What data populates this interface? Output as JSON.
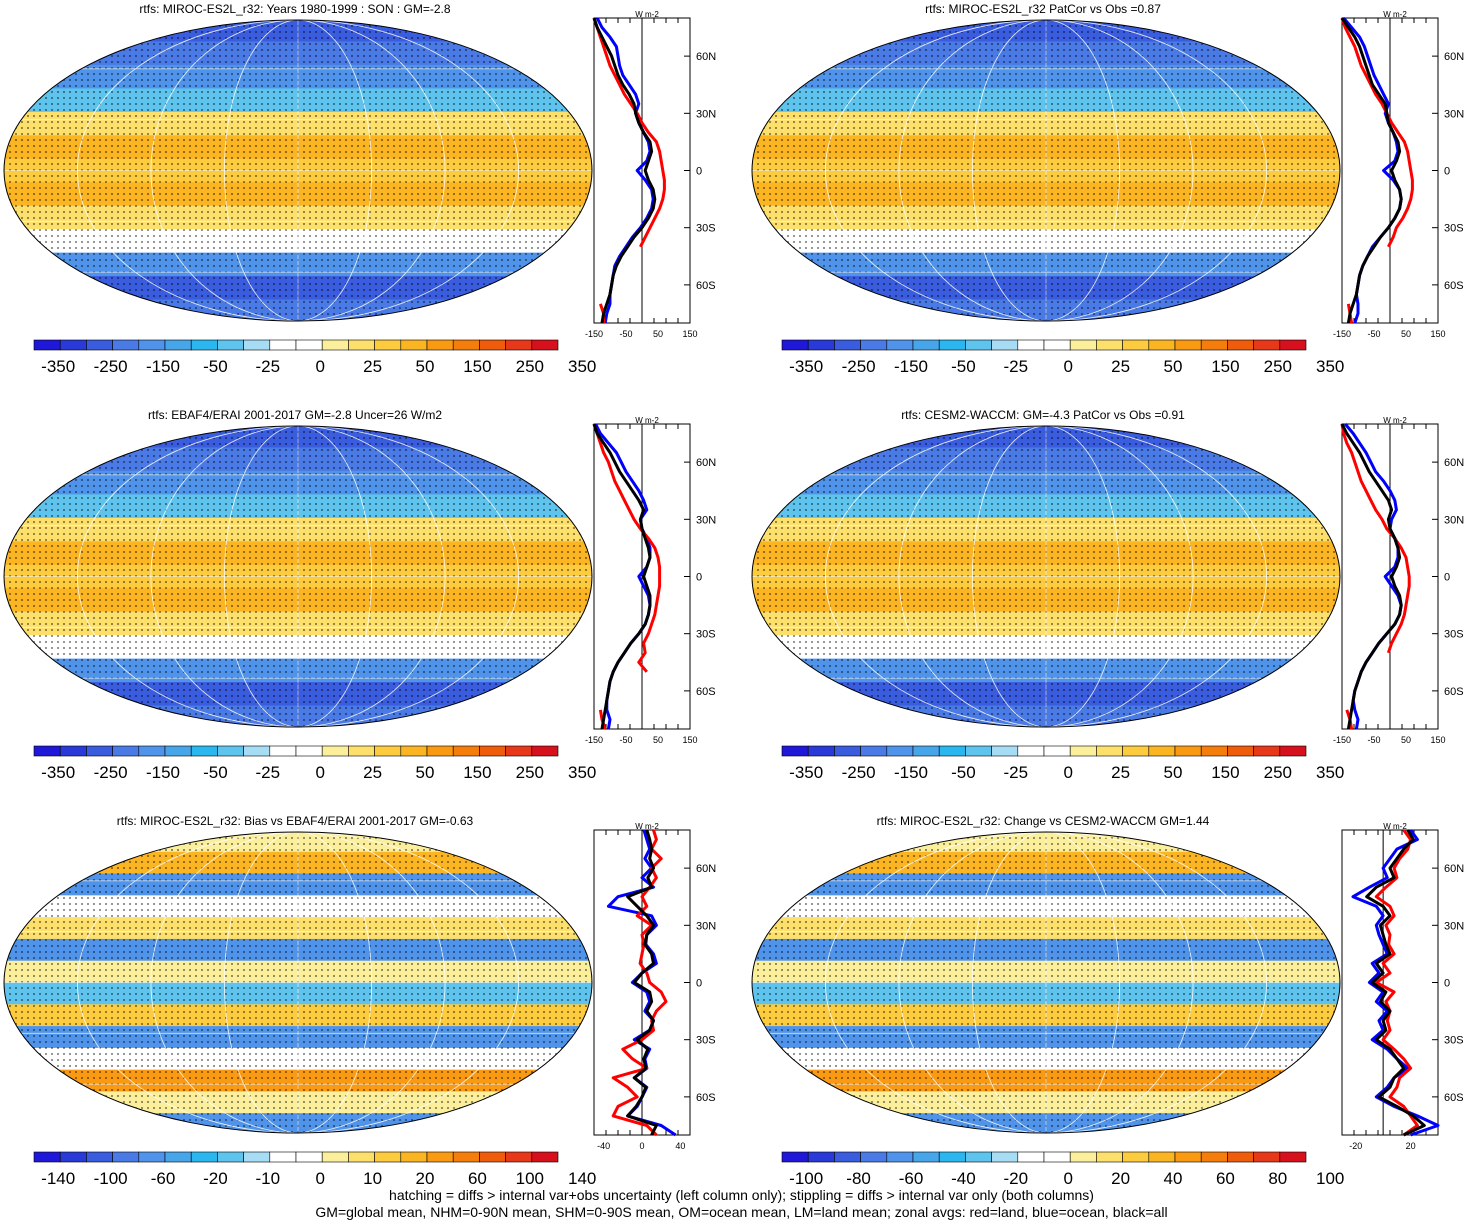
{
  "footnote": {
    "line1": "hatching = diffs > internal var+obs uncertainty (left column only); stippling = diffs > internal var only (both columns)",
    "line2": "GM=global mean, NHM=0-90N mean, SHM=0-90S mean, OM=ocean mean, LM=land mean; zonal avgs: red=land, blue=ocean, black=all"
  },
  "palette": {
    "colors": [
      "#2018d8",
      "#2a3ad8",
      "#3a5cde",
      "#4a7ae6",
      "#4f94ea",
      "#47a6ea",
      "#2ab6ee",
      "#5ec4ee",
      "#a7dcf5",
      "#ffffff",
      "#ffffff",
      "#fbef9c",
      "#fde06c",
      "#fdcb3e",
      "#fbb522",
      "#f99a12",
      "#f57d0c",
      "#ef5c0c",
      "#e7381a",
      "#d6101c"
    ],
    "land_line": "#000000",
    "red": "#ff0000",
    "blue": "#0000ff",
    "black": "#000000"
  },
  "zonal_lat_ticks": [
    "60N",
    "30N",
    "0",
    "30S",
    "60S"
  ],
  "zonal_unit": "W m-2",
  "chart_data": [
    {
      "type": "heatmap",
      "title": "rtfs: MIROC-ES2L_r32: Years 1980-1999 : SON : GM=-2.8",
      "colorbar_labels": [
        "-350",
        "-250",
        "-150",
        "-50",
        "-25",
        "0",
        "25",
        "50",
        "150",
        "250",
        "350"
      ],
      "zonal": {
        "xticks": [
          "-150",
          "-50",
          "50",
          "150"
        ],
        "xlim": [
          -150,
          150
        ],
        "lat": [
          80,
          75,
          70,
          65,
          60,
          55,
          50,
          45,
          40,
          35,
          30,
          25,
          20,
          15,
          10,
          5,
          0,
          -5,
          -10,
          -15,
          -20,
          -25,
          -30,
          -35,
          -40,
          -45,
          -50,
          -55,
          -60,
          -65,
          -70,
          -75,
          -80
        ],
        "all": [
          -150,
          -140,
          -125,
          -110,
          -95,
          -85,
          -75,
          -60,
          -40,
          -25,
          -20,
          -10,
          5,
          25,
          30,
          20,
          10,
          20,
          35,
          40,
          35,
          20,
          0,
          -25,
          -45,
          -65,
          -80,
          -90,
          -95,
          -100,
          -110,
          -120,
          -125
        ],
        "land": [
          -150,
          -140,
          -130,
          -120,
          -110,
          -100,
          -85,
          -70,
          -55,
          -35,
          -15,
          0,
          20,
          45,
          55,
          60,
          65,
          70,
          70,
          65,
          55,
          40,
          25,
          10,
          -5,
          null,
          null,
          null,
          null,
          null,
          -130,
          -120,
          -120
        ],
        "ocean": [
          -140,
          -125,
          -100,
          -80,
          -75,
          -70,
          -60,
          -40,
          -20,
          -10,
          -20,
          -10,
          5,
          20,
          25,
          15,
          -15,
          10,
          30,
          35,
          30,
          15,
          -5,
          -30,
          -50,
          -70,
          -85,
          -90,
          -95,
          -100,
          -100,
          -110,
          -115
        ]
      }
    },
    {
      "type": "heatmap",
      "title": "rtfs: MIROC-ES2L_r32 PatCor vs Obs =0.87",
      "colorbar_labels": [
        "-350",
        "-250",
        "-150",
        "-50",
        "-25",
        "0",
        "25",
        "50",
        "150",
        "250",
        "350"
      ],
      "zonal": {
        "xticks": [
          "-150",
          "-50",
          "50",
          "150"
        ],
        "xlim": [
          -150,
          150
        ],
        "lat": [
          80,
          75,
          70,
          65,
          60,
          55,
          50,
          45,
          40,
          35,
          30,
          25,
          20,
          15,
          10,
          5,
          0,
          -5,
          -10,
          -15,
          -20,
          -25,
          -30,
          -35,
          -40,
          -45,
          -50,
          -55,
          -60,
          -65,
          -70,
          -75,
          -80
        ],
        "all": [
          -150,
          -130,
          -110,
          -95,
          -85,
          -75,
          -65,
          -55,
          -35,
          -15,
          -10,
          -5,
          10,
          25,
          30,
          20,
          5,
          15,
          30,
          35,
          30,
          15,
          -5,
          -30,
          -50,
          -70,
          -85,
          -95,
          -100,
          -105,
          -115,
          -125,
          -130
        ],
        "land": [
          -150,
          -140,
          -125,
          -110,
          -100,
          -90,
          -75,
          -60,
          -45,
          -25,
          -10,
          5,
          25,
          45,
          55,
          60,
          65,
          70,
          70,
          65,
          55,
          40,
          20,
          10,
          -5,
          null,
          null,
          null,
          null,
          null,
          -130,
          -125,
          -120
        ],
        "ocean": [
          -145,
          -120,
          -95,
          -80,
          -70,
          -60,
          -50,
          -35,
          -20,
          -5,
          -15,
          -5,
          10,
          20,
          25,
          15,
          -20,
          10,
          30,
          35,
          30,
          15,
          -5,
          -30,
          -55,
          -70,
          -85,
          -95,
          -100,
          -105,
          -100,
          -100,
          -110
        ]
      }
    },
    {
      "type": "heatmap",
      "title": "rtfs: EBAF4/ERAI 2001-2017 GM=-2.8 Uncer=26 W/m2",
      "colorbar_labels": [
        "-350",
        "-250",
        "-150",
        "-50",
        "-25",
        "0",
        "25",
        "50",
        "150",
        "250",
        "350"
      ],
      "zonal": {
        "xticks": [
          "-150",
          "-50",
          "50",
          "150"
        ],
        "xlim": [
          -150,
          150
        ],
        "lat": [
          80,
          75,
          70,
          65,
          60,
          55,
          50,
          45,
          40,
          35,
          30,
          25,
          20,
          15,
          10,
          5,
          0,
          -5,
          -10,
          -15,
          -20,
          -25,
          -30,
          -35,
          -40,
          -45,
          -50,
          -55,
          -60,
          -65,
          -70,
          -75,
          -80
        ],
        "all": [
          -150,
          -140,
          -120,
          -100,
          -85,
          -70,
          -50,
          -30,
          -10,
          5,
          -5,
          0,
          10,
          20,
          25,
          15,
          5,
          15,
          25,
          25,
          20,
          10,
          -10,
          -35,
          -55,
          -75,
          -90,
          -100,
          -105,
          -110,
          -115,
          -120,
          -125
        ],
        "land": [
          -150,
          -140,
          -130,
          -120,
          -105,
          -95,
          -85,
          -70,
          -55,
          -40,
          -25,
          -5,
          20,
          40,
          50,
          55,
          55,
          55,
          50,
          45,
          40,
          30,
          20,
          5,
          10,
          -10,
          15,
          null,
          null,
          null,
          -130,
          -125,
          -115
        ],
        "ocean": [
          -145,
          -130,
          -105,
          -80,
          -65,
          -50,
          -30,
          -10,
          5,
          15,
          -5,
          0,
          15,
          25,
          25,
          15,
          -10,
          5,
          20,
          25,
          20,
          10,
          -10,
          -35,
          -55,
          -75,
          -90,
          -100,
          -105,
          -110,
          -110,
          -100,
          -105
        ]
      }
    },
    {
      "type": "heatmap",
      "title": "rtfs: CESM2-WACCM: GM=-4.3 PatCor vs Obs =0.91",
      "colorbar_labels": [
        "-350",
        "-250",
        "-150",
        "-50",
        "-25",
        "0",
        "25",
        "50",
        "150",
        "250",
        "350"
      ],
      "zonal": {
        "xticks": [
          "-150",
          "-50",
          "50",
          "150"
        ],
        "xlim": [
          -150,
          150
        ],
        "lat": [
          80,
          75,
          70,
          65,
          60,
          55,
          50,
          45,
          40,
          35,
          30,
          25,
          20,
          15,
          10,
          5,
          0,
          -5,
          -10,
          -15,
          -20,
          -25,
          -30,
          -35,
          -40,
          -45,
          -50,
          -55,
          -60,
          -65,
          -70,
          -75,
          -80
        ],
        "all": [
          -150,
          -135,
          -115,
          -95,
          -80,
          -65,
          -45,
          -25,
          -5,
          5,
          -5,
          0,
          15,
          25,
          30,
          20,
          5,
          15,
          30,
          35,
          30,
          15,
          -10,
          -35,
          -55,
          -75,
          -90,
          -100,
          -110,
          -115,
          -120,
          -125,
          -130
        ],
        "land": [
          -150,
          -145,
          -135,
          -120,
          -110,
          -100,
          -90,
          -75,
          -60,
          -45,
          -25,
          -10,
          15,
          35,
          50,
          55,
          60,
          60,
          55,
          50,
          45,
          35,
          20,
          5,
          -5,
          null,
          null,
          null,
          null,
          null,
          -135,
          -125,
          -120
        ],
        "ocean": [
          -140,
          -115,
          -95,
          -75,
          -60,
          -45,
          -20,
          0,
          15,
          20,
          5,
          0,
          15,
          25,
          25,
          15,
          -15,
          5,
          25,
          35,
          30,
          15,
          -10,
          -35,
          -55,
          -75,
          -90,
          -100,
          -110,
          -115,
          -110,
          -100,
          -105
        ]
      }
    },
    {
      "type": "heatmap",
      "title": "rtfs: MIROC-ES2L_r32: Bias vs EBAF4/ERAI 2001-2017  GM=-0.63",
      "colorbar_labels": [
        "-140",
        "-100",
        "-60",
        "-20",
        "-10",
        "0",
        "10",
        "20",
        "60",
        "100",
        "140"
      ],
      "zonal": {
        "xticks": [
          "-40",
          "0",
          "40"
        ],
        "xlim": [
          -50,
          50
        ],
        "lat": [
          80,
          75,
          70,
          65,
          60,
          55,
          50,
          45,
          40,
          35,
          30,
          25,
          20,
          15,
          10,
          5,
          0,
          -5,
          -10,
          -15,
          -20,
          -25,
          -30,
          -35,
          -40,
          -45,
          -50,
          -55,
          -60,
          -65,
          -70,
          -75,
          -80
        ],
        "all": [
          5,
          8,
          10,
          8,
          12,
          6,
          10,
          -15,
          -5,
          5,
          12,
          5,
          3,
          10,
          12,
          0,
          -8,
          8,
          10,
          5,
          12,
          8,
          -5,
          6,
          2,
          4,
          -8,
          4,
          0,
          -6,
          -15,
          15,
          10
        ],
        "land": [
          12,
          15,
          10,
          20,
          10,
          15,
          8,
          0,
          5,
          -5,
          10,
          0,
          2,
          0,
          -2,
          5,
          8,
          20,
          25,
          15,
          10,
          12,
          0,
          -20,
          -10,
          5,
          -30,
          -15,
          -5,
          -25,
          -30,
          5,
          15
        ],
        "ocean": [
          2,
          5,
          8,
          3,
          10,
          0,
          12,
          -25,
          -35,
          10,
          15,
          5,
          4,
          12,
          15,
          0,
          -10,
          5,
          8,
          3,
          12,
          8,
          -8,
          8,
          3,
          5,
          -8,
          5,
          0,
          -5,
          -15,
          20,
          35
        ]
      }
    },
    {
      "type": "heatmap",
      "title": "rtfs: MIROC-ES2L_r32: Change vs CESM2-WACCM GM=1.44",
      "colorbar_labels": [
        "-100",
        "-80",
        "-60",
        "-40",
        "-20",
        "0",
        "20",
        "40",
        "60",
        "80",
        "100"
      ],
      "zonal": {
        "xticks": [
          "-20",
          "20"
        ],
        "xlim": [
          -30,
          40
        ],
        "lat": [
          80,
          75,
          70,
          65,
          60,
          55,
          50,
          45,
          40,
          35,
          30,
          25,
          20,
          15,
          10,
          5,
          0,
          -5,
          -10,
          -15,
          -20,
          -25,
          -30,
          -35,
          -40,
          -45,
          -50,
          -55,
          -60,
          -65,
          -70,
          -75,
          -80
        ],
        "all": [
          18,
          22,
          15,
          10,
          5,
          8,
          -5,
          -12,
          0,
          5,
          -2,
          0,
          2,
          5,
          -5,
          0,
          -8,
          2,
          -2,
          5,
          0,
          2,
          -5,
          5,
          10,
          15,
          8,
          5,
          -3,
          10,
          22,
          30,
          15
        ],
        "land": [
          15,
          20,
          18,
          12,
          8,
          10,
          2,
          -5,
          5,
          8,
          2,
          5,
          4,
          8,
          0,
          5,
          -5,
          8,
          2,
          5,
          3,
          5,
          0,
          8,
          15,
          20,
          12,
          10,
          5,
          15,
          20,
          25,
          15
        ],
        "ocean": [
          20,
          25,
          10,
          5,
          0,
          3,
          -10,
          -22,
          -5,
          0,
          -5,
          -3,
          0,
          3,
          -8,
          -3,
          -10,
          0,
          -5,
          3,
          -3,
          0,
          -8,
          3,
          10,
          18,
          8,
          3,
          -5,
          8,
          25,
          40,
          20
        ]
      }
    }
  ]
}
